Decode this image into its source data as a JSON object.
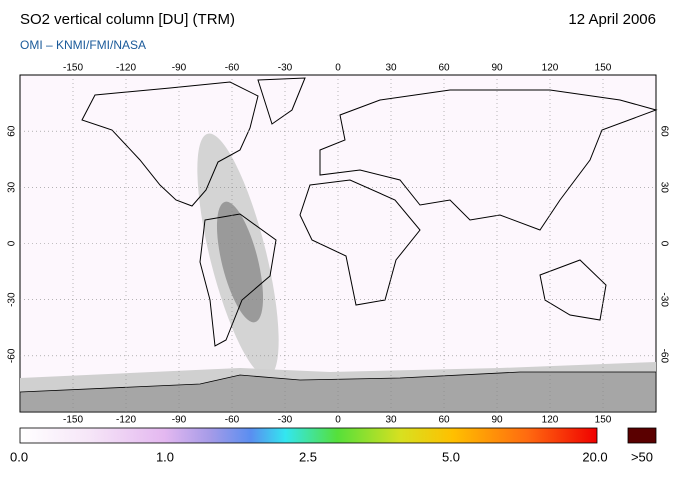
{
  "header": {
    "title": "SO2 vertical column [DU] (TRM)",
    "date": "12 April 2006",
    "subtitle": "OMI  –  KNMI/FMI/NASA"
  },
  "map": {
    "lon_ticks": [
      -150,
      -120,
      -90,
      -60,
      -30,
      0,
      30,
      60,
      90,
      120,
      150
    ],
    "lat_ticks": [
      60,
      30,
      0,
      -30,
      -60
    ]
  },
  "colorbar": {
    "labels": [
      "0.0",
      "1.0",
      "2.5",
      "5.0",
      "20.0",
      ">50"
    ]
  }
}
